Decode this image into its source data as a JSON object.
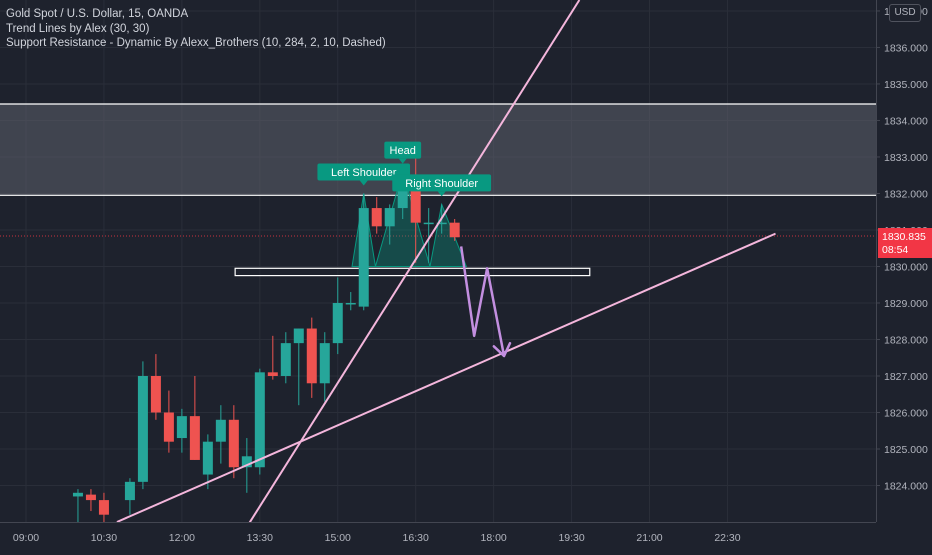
{
  "chart_data": {
    "type": "candlestick",
    "title": "Gold Spot / U.S. Dollar, 15, OANDA",
    "indicators": [
      "Trend Lines by Alex (30, 30)",
      "Support Resistance - Dynamic By Alexx_Brothers (10, 284, 2, 10, Dashed)"
    ],
    "currency": "USD",
    "ylim": [
      1823.0,
      1837.3
    ],
    "y_ticks": [
      1824.0,
      1825.0,
      1826.0,
      1827.0,
      1828.0,
      1829.0,
      1830.0,
      1831.0,
      1832.0,
      1833.0,
      1834.0,
      1835.0,
      1836.0,
      1837.0
    ],
    "y_tick_labels": [
      "1824.000",
      "1825.000",
      "1826.000",
      "1827.000",
      "1828.000",
      "1829.000",
      "1830.000",
      "1831.000",
      "1832.000",
      "1833.000",
      "1834.000",
      "1835.000",
      "1836.000",
      "1837.000"
    ],
    "x_ticks": [
      {
        "label": "09:00",
        "bar": 0
      },
      {
        "label": "10:30",
        "bar": 6
      },
      {
        "label": "12:00",
        "bar": 12
      },
      {
        "label": "13:30",
        "bar": 18
      },
      {
        "label": "15:00",
        "bar": 24
      },
      {
        "label": "16:30",
        "bar": 30
      },
      {
        "label": "18:00",
        "bar": 36
      },
      {
        "label": "19:30",
        "bar": 42
      },
      {
        "label": "21:00",
        "bar": 48
      },
      {
        "label": "22:30",
        "bar": 54
      }
    ],
    "candles": [
      {
        "bar": 4,
        "o": 1823.7,
        "h": 1823.9,
        "l": 1823.0,
        "c": 1823.8
      },
      {
        "bar": 5,
        "o": 1823.75,
        "h": 1823.9,
        "l": 1823.3,
        "c": 1823.6
      },
      {
        "bar": 6,
        "o": 1823.6,
        "h": 1823.8,
        "l": 1823.0,
        "c": 1823.2
      },
      {
        "bar": 8,
        "o": 1823.6,
        "h": 1824.2,
        "l": 1823.2,
        "c": 1824.1
      },
      {
        "bar": 9,
        "o": 1824.1,
        "h": 1827.4,
        "l": 1823.9,
        "c": 1827.0
      },
      {
        "bar": 10,
        "o": 1827.0,
        "h": 1827.6,
        "l": 1825.8,
        "c": 1826.0
      },
      {
        "bar": 11,
        "o": 1826.0,
        "h": 1826.6,
        "l": 1824.9,
        "c": 1825.2
      },
      {
        "bar": 12,
        "o": 1825.3,
        "h": 1826.1,
        "l": 1824.9,
        "c": 1825.9
      },
      {
        "bar": 13,
        "o": 1825.9,
        "h": 1827.0,
        "l": 1824.7,
        "c": 1824.7
      },
      {
        "bar": 14,
        "o": 1824.3,
        "h": 1825.4,
        "l": 1823.9,
        "c": 1825.2
      },
      {
        "bar": 15,
        "o": 1825.2,
        "h": 1826.2,
        "l": 1824.6,
        "c": 1825.8
      },
      {
        "bar": 16,
        "o": 1825.8,
        "h": 1826.2,
        "l": 1824.2,
        "c": 1824.5
      },
      {
        "bar": 17,
        "o": 1824.5,
        "h": 1825.3,
        "l": 1823.8,
        "c": 1824.8
      },
      {
        "bar": 18,
        "o": 1824.5,
        "h": 1827.2,
        "l": 1824.3,
        "c": 1827.1
      },
      {
        "bar": 19,
        "o": 1827.1,
        "h": 1828.1,
        "l": 1826.9,
        "c": 1827.0
      },
      {
        "bar": 20,
        "o": 1827.0,
        "h": 1828.2,
        "l": 1826.8,
        "c": 1827.9
      },
      {
        "bar": 21,
        "o": 1827.9,
        "h": 1828.3,
        "l": 1826.2,
        "c": 1828.3
      },
      {
        "bar": 22,
        "o": 1828.3,
        "h": 1828.6,
        "l": 1826.4,
        "c": 1826.8
      },
      {
        "bar": 23,
        "o": 1826.8,
        "h": 1828.2,
        "l": 1826.3,
        "c": 1827.9
      },
      {
        "bar": 24,
        "o": 1827.9,
        "h": 1829.7,
        "l": 1827.6,
        "c": 1829.0
      },
      {
        "bar": 25,
        "o": 1829.0,
        "h": 1829.3,
        "l": 1828.8,
        "c": 1829.0
      },
      {
        "bar": 26,
        "o": 1828.9,
        "h": 1832.0,
        "l": 1828.8,
        "c": 1831.6
      },
      {
        "bar": 27,
        "o": 1831.6,
        "h": 1831.9,
        "l": 1830.9,
        "c": 1831.1
      },
      {
        "bar": 28,
        "o": 1831.1,
        "h": 1831.7,
        "l": 1830.6,
        "c": 1831.6
      },
      {
        "bar": 29,
        "o": 1831.6,
        "h": 1832.6,
        "l": 1831.3,
        "c": 1832.4
      },
      {
        "bar": 30,
        "o": 1832.4,
        "h": 1833.0,
        "l": 1830.1,
        "c": 1831.2
      },
      {
        "bar": 31,
        "o": 1831.2,
        "h": 1831.6,
        "l": 1830.1,
        "c": 1831.2
      },
      {
        "bar": 32,
        "o": 1831.2,
        "h": 1831.7,
        "l": 1830.9,
        "c": 1831.2
      },
      {
        "bar": 33,
        "o": 1831.2,
        "h": 1831.3,
        "l": 1830.7,
        "c": 1830.8
      }
    ],
    "last_price": {
      "value": 1830.835,
      "label": "1830.835",
      "countdown": "08:54"
    },
    "patterns": [
      {
        "label": "Left Shoulder",
        "bar": 26
      },
      {
        "label": "Head",
        "bar": 29
      },
      {
        "label": "Right Shoulder",
        "bar": 32
      }
    ],
    "resistance_zone": {
      "low": 1831.95,
      "high": 1834.45
    },
    "support_box": {
      "low": 1829.75,
      "high": 1829.95
    },
    "trend_lines": [
      {
        "from": {
          "bar": 16,
          "y": 1822.3
        },
        "to": {
          "bar": 42.6,
          "y": 1837.3
        }
      },
      {
        "from": {
          "bar": 7,
          "y": 1823.0
        },
        "to": {
          "bar": 57.7,
          "y": 1830.9
        }
      }
    ],
    "projection": [
      {
        "bar": 33.5,
        "y": 1830.55
      },
      {
        "bar": 34.5,
        "y": 1828.1
      },
      {
        "bar": 35.5,
        "y": 1829.95
      },
      {
        "bar": 36.8,
        "y": 1827.55
      }
    ],
    "colors": {
      "background": "#1e222d",
      "up": "#26a69a",
      "down": "#ef5350",
      "grid": "#2a2e39",
      "axis_text": "#b2b5be",
      "trend": "#f4b6dc",
      "projection": "#c38fe0",
      "pattern": "#089981",
      "price_tag": "#f23645"
    },
    "grid": true
  }
}
